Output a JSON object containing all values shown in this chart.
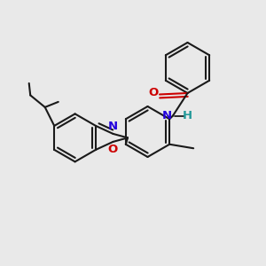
{
  "background_color": "#e9e9e9",
  "bond_color": "#1a1a1a",
  "bond_width": 1.5,
  "N_color": "#2200dd",
  "O_color": "#cc0000",
  "H_color": "#229999",
  "font_size": 9.5,
  "fig_width": 3.0,
  "fig_height": 3.0,
  "dpi": 100,
  "xlim": [
    0,
    10
  ],
  "ylim": [
    0,
    10
  ]
}
